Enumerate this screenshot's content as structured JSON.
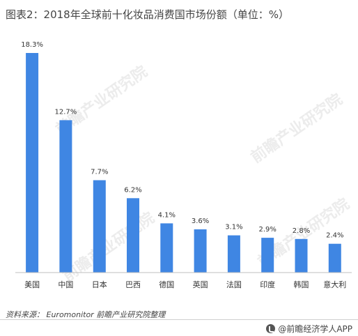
{
  "title": "图表2：2018年全球前十化妆品消费国市场份额（单位：%）",
  "source": "资料来源：  Euromonitor  前瞻产业研究院整理",
  "brand": "@前瞻经济学人APP",
  "watermark": "前瞻产业研究院",
  "colors": {
    "bar": "#3f86e3",
    "axis": "#bfbfbf"
  },
  "chart_data": {
    "type": "bar",
    "title": "图表2：2018年全球前十化妆品消费国市场份额（单位：%）",
    "xlabel": "",
    "ylabel": "",
    "categories": [
      "美国",
      "中国",
      "日本",
      "巴西",
      "德国",
      "英国",
      "法国",
      "印度",
      "韩国",
      "意大利"
    ],
    "values": [
      18.3,
      12.7,
      7.7,
      6.2,
      4.1,
      3.6,
      3.1,
      2.9,
      2.8,
      2.4
    ],
    "value_labels": [
      "18.3%",
      "12.7%",
      "7.7%",
      "6.2%",
      "4.1%",
      "3.6%",
      "3.1%",
      "2.9%",
      "2.8%",
      "2.4%"
    ],
    "ylim": [
      0,
      18.3
    ],
    "grid": false,
    "legend": "none"
  }
}
